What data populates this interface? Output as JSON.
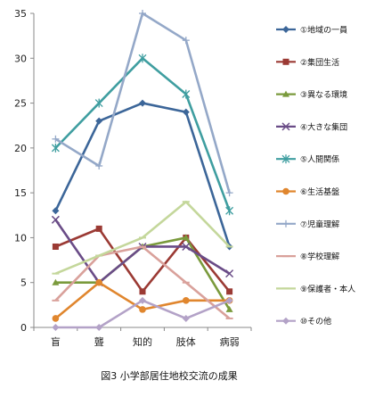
{
  "chart_data": {
    "type": "line",
    "title": "図3 小学部居住地校交流の成果",
    "xlabel": "",
    "ylabel": "",
    "categories": [
      "盲",
      "聾",
      "知的",
      "肢体",
      "病弱"
    ],
    "ylim": [
      0,
      35
    ],
    "yticks": [
      0,
      5,
      10,
      15,
      20,
      25,
      30,
      35
    ],
    "grid": false,
    "legend_position": "right",
    "series": [
      {
        "name": "①地域の一員",
        "values": [
          13,
          23,
          25,
          24,
          9
        ],
        "color": "#3c6699",
        "marker": "diamond"
      },
      {
        "name": "②集団生活",
        "values": [
          9,
          11,
          4,
          10,
          4
        ],
        "color": "#9b3a34",
        "marker": "square"
      },
      {
        "name": "③異なる環境",
        "values": [
          5,
          5,
          9,
          10,
          2
        ],
        "color": "#7a9a3c",
        "marker": "triangle"
      },
      {
        "name": "④大きな集団",
        "values": [
          12,
          5,
          9,
          9,
          6
        ],
        "color": "#6a4c87",
        "marker": "x"
      },
      {
        "name": "⑤人間関係",
        "values": [
          20,
          25,
          30,
          26,
          13
        ],
        "color": "#3f9ea0",
        "marker": "star"
      },
      {
        "name": "⑥生活基盤",
        "values": [
          1,
          5,
          2,
          3,
          3
        ],
        "color": "#e0862e",
        "marker": "circle"
      },
      {
        "name": "⑦児童理解",
        "values": [
          21,
          18,
          35,
          32,
          15
        ],
        "color": "#94a8c8",
        "marker": "plus"
      },
      {
        "name": "⑧学校理解",
        "values": [
          3,
          8,
          9,
          5,
          1
        ],
        "color": "#d9a19b",
        "marker": "dash"
      },
      {
        "name": "⑨保護者・本人",
        "values": [
          6,
          8,
          10,
          14,
          9
        ],
        "color": "#c4d79b",
        "marker": "dash"
      },
      {
        "name": "⑩その他",
        "values": [
          0,
          0,
          3,
          1,
          3
        ],
        "color": "#b3a2c7",
        "marker": "diamond"
      }
    ]
  }
}
